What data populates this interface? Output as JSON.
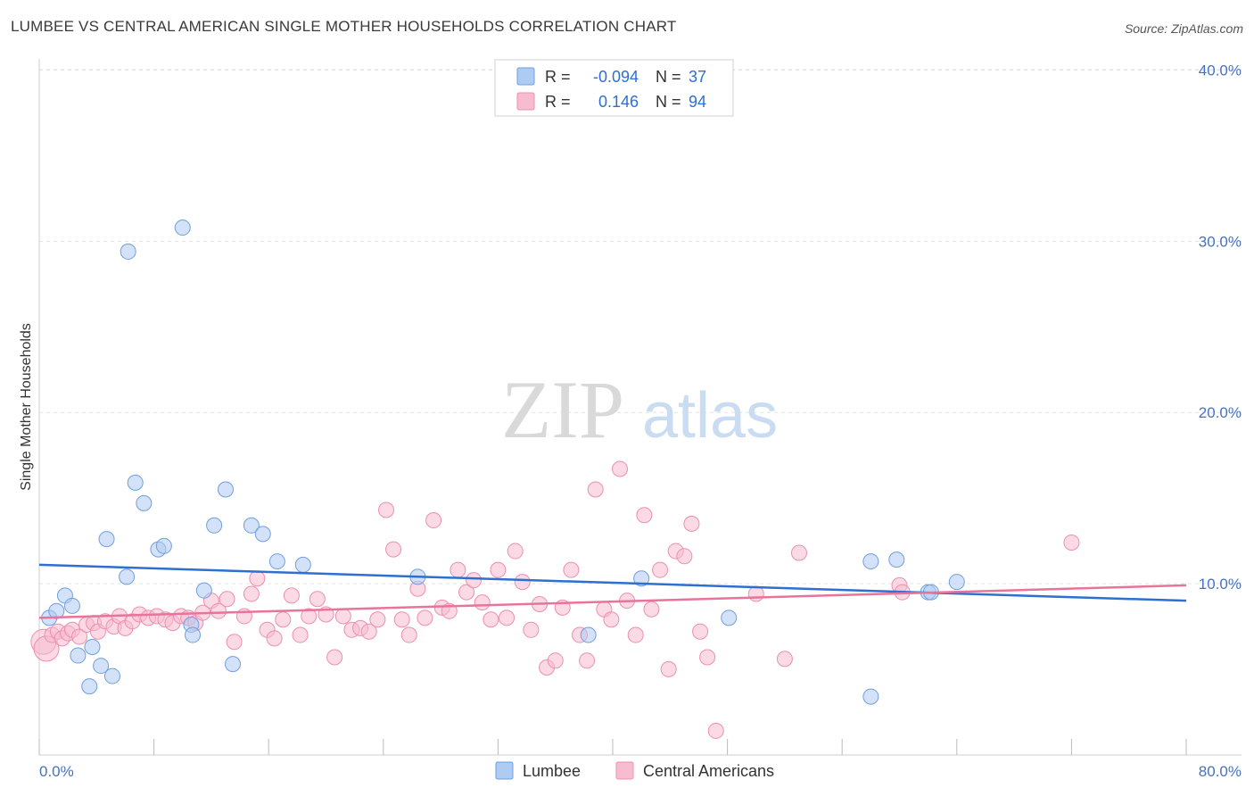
{
  "title": "LUMBEE VS CENTRAL AMERICAN SINGLE MOTHER HOUSEHOLDS CORRELATION CHART",
  "source": "Source: ZipAtlas.com",
  "watermark": {
    "zip": "ZIP",
    "atlas": "atlas"
  },
  "colors": {
    "lumbee_fill": "#aecbf2",
    "lumbee_stroke": "#6f9fe0",
    "lumbee_line": "#2f6fd0",
    "central_fill": "#f7bcd0",
    "central_stroke": "#ec8fb0",
    "central_line": "#e8749c",
    "tick_color": "#4472c4"
  },
  "legend": {
    "rows": [
      {
        "r_label": "R =",
        "r_value": "-0.094",
        "n_label": "N =",
        "n_value": "37"
      },
      {
        "r_label": "R =",
        "r_value": "0.146",
        "n_label": "N =",
        "n_value": "94"
      }
    ],
    "bottom": [
      "Lumbee",
      "Central Americans"
    ]
  },
  "chart_data": {
    "type": "scatter",
    "title": "LUMBEE VS CENTRAL AMERICAN SINGLE MOTHER HOUSEHOLDS CORRELATION CHART",
    "xlabel": "",
    "ylabel": "Single Mother Households",
    "xlim": [
      0,
      80
    ],
    "ylim": [
      0,
      42
    ],
    "x_tick_labels": [
      "0.0%",
      "80.0%"
    ],
    "y_ticks": [
      10,
      20,
      30,
      40
    ],
    "y_tick_labels": [
      "10.0%",
      "20.0%",
      "30.0%",
      "40.0%"
    ],
    "grid": "horizontal dashed",
    "legend_position": "top-center",
    "series": [
      {
        "name": "Lumbee",
        "r": -0.094,
        "n": 37,
        "trend": {
          "x0": 0,
          "y0": 11.1,
          "x1": 80,
          "y1": 9.0
        },
        "points": [
          [
            0.7,
            8.0
          ],
          [
            1.2,
            8.4
          ],
          [
            1.8,
            9.3
          ],
          [
            2.3,
            8.7
          ],
          [
            2.7,
            5.8
          ],
          [
            3.7,
            6.3
          ],
          [
            3.5,
            4.0
          ],
          [
            4.3,
            5.2
          ],
          [
            4.7,
            12.6
          ],
          [
            5.1,
            4.6
          ],
          [
            6.1,
            10.4
          ],
          [
            6.2,
            29.4
          ],
          [
            6.7,
            15.9
          ],
          [
            7.3,
            14.7
          ],
          [
            8.3,
            12.0
          ],
          [
            8.7,
            12.2
          ],
          [
            10.0,
            30.8
          ],
          [
            10.6,
            7.6
          ],
          [
            10.7,
            7.0
          ],
          [
            11.5,
            9.6
          ],
          [
            12.2,
            13.4
          ],
          [
            13.0,
            15.5
          ],
          [
            13.5,
            5.3
          ],
          [
            14.8,
            13.4
          ],
          [
            15.6,
            12.9
          ],
          [
            16.6,
            11.3
          ],
          [
            18.4,
            11.1
          ],
          [
            26.4,
            10.4
          ],
          [
            38.3,
            7.0
          ],
          [
            42.0,
            10.3
          ],
          [
            48.1,
            8.0
          ],
          [
            58.0,
            11.3
          ],
          [
            58.0,
            3.4
          ],
          [
            59.8,
            11.4
          ],
          [
            62.0,
            9.5
          ],
          [
            62.2,
            9.5
          ],
          [
            64.0,
            10.1
          ]
        ]
      },
      {
        "name": "Central Americans",
        "r": 0.146,
        "n": 94,
        "trend": {
          "x0": 0,
          "y0": 8.0,
          "x1": 80,
          "y1": 9.9
        },
        "points": [
          [
            0.3,
            6.6
          ],
          [
            0.5,
            6.2
          ],
          [
            0.9,
            7.0
          ],
          [
            1.3,
            7.2
          ],
          [
            1.6,
            6.8
          ],
          [
            2.0,
            7.1
          ],
          [
            2.3,
            7.3
          ],
          [
            2.8,
            6.9
          ],
          [
            3.3,
            7.6
          ],
          [
            3.8,
            7.7
          ],
          [
            4.1,
            7.2
          ],
          [
            4.6,
            7.8
          ],
          [
            5.2,
            7.5
          ],
          [
            5.6,
            8.1
          ],
          [
            6.0,
            7.4
          ],
          [
            6.5,
            7.8
          ],
          [
            7.0,
            8.2
          ],
          [
            7.6,
            8.0
          ],
          [
            8.2,
            8.1
          ],
          [
            8.8,
            7.9
          ],
          [
            9.3,
            7.7
          ],
          [
            9.9,
            8.1
          ],
          [
            10.4,
            8.0
          ],
          [
            10.9,
            7.7
          ],
          [
            11.4,
            8.3
          ],
          [
            12.0,
            9.0
          ],
          [
            12.5,
            8.4
          ],
          [
            13.1,
            9.1
          ],
          [
            13.6,
            6.6
          ],
          [
            14.3,
            8.1
          ],
          [
            14.8,
            9.4
          ],
          [
            15.2,
            10.3
          ],
          [
            15.9,
            7.3
          ],
          [
            16.4,
            6.8
          ],
          [
            17.0,
            7.9
          ],
          [
            17.6,
            9.3
          ],
          [
            18.2,
            7.0
          ],
          [
            18.8,
            8.1
          ],
          [
            19.4,
            9.1
          ],
          [
            20.0,
            8.2
          ],
          [
            20.6,
            5.7
          ],
          [
            21.2,
            8.1
          ],
          [
            21.8,
            7.3
          ],
          [
            22.4,
            7.4
          ],
          [
            23.0,
            7.2
          ],
          [
            23.6,
            7.9
          ],
          [
            24.2,
            14.3
          ],
          [
            24.7,
            12.0
          ],
          [
            25.3,
            7.9
          ],
          [
            25.8,
            7.0
          ],
          [
            26.4,
            9.7
          ],
          [
            26.9,
            8.0
          ],
          [
            27.5,
            13.7
          ],
          [
            28.1,
            8.6
          ],
          [
            28.6,
            8.4
          ],
          [
            29.2,
            10.8
          ],
          [
            29.8,
            9.5
          ],
          [
            30.3,
            10.2
          ],
          [
            30.9,
            8.9
          ],
          [
            31.5,
            7.9
          ],
          [
            32.0,
            10.8
          ],
          [
            32.6,
            8.0
          ],
          [
            33.2,
            11.9
          ],
          [
            33.7,
            10.1
          ],
          [
            34.3,
            7.3
          ],
          [
            34.9,
            8.8
          ],
          [
            35.4,
            5.1
          ],
          [
            36.0,
            5.5
          ],
          [
            36.5,
            8.6
          ],
          [
            37.1,
            10.8
          ],
          [
            37.7,
            7.0
          ],
          [
            38.2,
            5.5
          ],
          [
            38.8,
            15.5
          ],
          [
            39.4,
            8.5
          ],
          [
            39.9,
            7.9
          ],
          [
            40.5,
            16.7
          ],
          [
            41.0,
            9.0
          ],
          [
            41.6,
            7.0
          ],
          [
            42.2,
            14.0
          ],
          [
            42.7,
            8.5
          ],
          [
            43.3,
            10.8
          ],
          [
            43.9,
            5.0
          ],
          [
            44.4,
            11.9
          ],
          [
            45.0,
            11.6
          ],
          [
            45.5,
            13.5
          ],
          [
            46.1,
            7.2
          ],
          [
            46.6,
            5.7
          ],
          [
            47.2,
            1.4
          ],
          [
            50.0,
            9.4
          ],
          [
            52.0,
            5.6
          ],
          [
            53.0,
            11.8
          ],
          [
            60.0,
            9.9
          ],
          [
            60.2,
            9.5
          ],
          [
            72.0,
            12.4
          ]
        ]
      }
    ]
  }
}
